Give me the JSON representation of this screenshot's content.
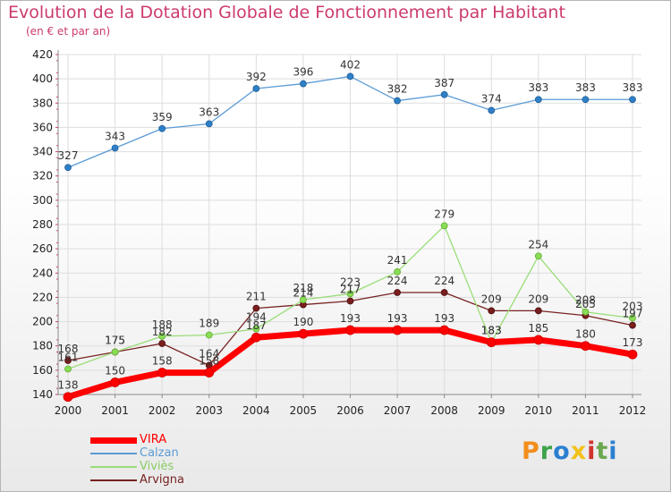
{
  "header": {
    "title": "Evolution de la Dotation Globale de Fonctionnement par Habitant",
    "subtitle": "(en € et par an)"
  },
  "logo": {
    "text": "Proxiti",
    "colors": [
      "#f28e1c",
      "#3ea34a",
      "#2b7fd1",
      "#f2c21c",
      "#d0342c",
      "#6aa84f",
      "#2b7fd1"
    ]
  },
  "colors": {
    "VIRA": "#ff0000",
    "Calzan": "#5b9bd5",
    "Viviès": "#99dd77",
    "Arvigna": "#772222",
    "axis": "#8a8a8a",
    "grid": "#dddddd",
    "tick_mark": "#cc3a6e"
  },
  "chart_data": {
    "type": "line",
    "title": "Evolution de la Dotation Globale de Fonctionnement par Habitant",
    "subtitle": "(en € et par an)",
    "x": [
      "2000",
      "2001",
      "2002",
      "2003",
      "2004",
      "2005",
      "2006",
      "2007",
      "2008",
      "2009",
      "2010",
      "2011",
      "2012"
    ],
    "ylim": [
      140,
      420
    ],
    "yticks": [
      140,
      160,
      180,
      200,
      220,
      240,
      260,
      280,
      300,
      320,
      340,
      360,
      380,
      400,
      420
    ],
    "grid": true,
    "legend_position": "bottom-left",
    "series": [
      {
        "name": "VIRA",
        "values": [
          138,
          150,
          158,
          158,
          187,
          190,
          193,
          193,
          193,
          183,
          185,
          180,
          173
        ]
      },
      {
        "name": "Calzan",
        "values": [
          327,
          343,
          359,
          363,
          392,
          396,
          402,
          382,
          387,
          374,
          383,
          383,
          383
        ]
      },
      {
        "name": "Viviès",
        "values": [
          161,
          175,
          188,
          189,
          194,
          218,
          223,
          241,
          279,
          183,
          254,
          208,
          203
        ]
      },
      {
        "name": "Arvigna",
        "values": [
          168,
          175,
          182,
          164,
          211,
          214,
          217,
          224,
          224,
          209,
          209,
          205,
          197
        ]
      }
    ]
  }
}
